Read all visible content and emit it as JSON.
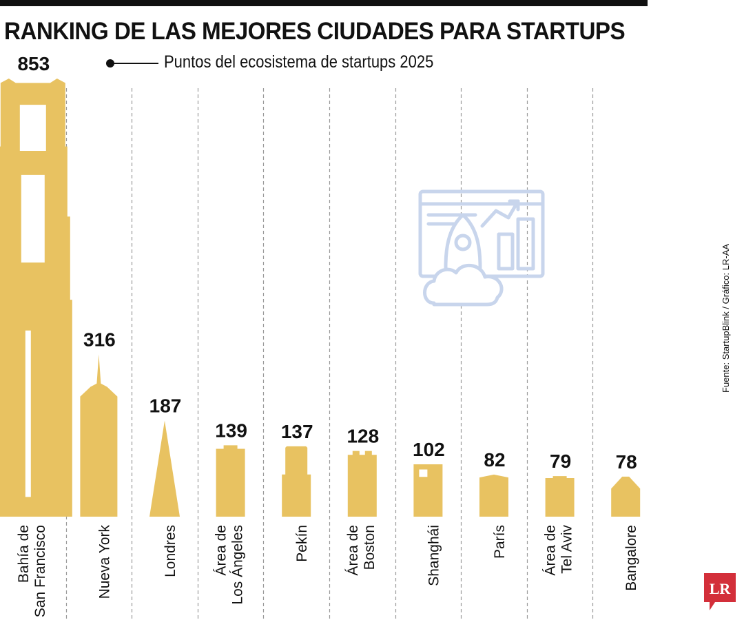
{
  "header": {
    "title": "RANKING DE LAS MEJORES CIUDADES PARA STARTUPS",
    "legend": "Puntos del ecosistema de startups 2025"
  },
  "footer": {
    "source": "Fuente: StartupBlink / Gráfico: LR-AA",
    "logo_text": "LR"
  },
  "colors": {
    "bar": "#E8C261",
    "icon_stroke": "#C8D5EC",
    "divider": "#9A9A9A",
    "logo": "#D32F3A"
  },
  "icons": [
    "rocket-icon",
    "growth-chart-icon",
    "cloud-icon"
  ],
  "chart_data": {
    "type": "bar",
    "title": "RANKING DE LAS MEJORES CIUDADES PARA STARTUPS",
    "ylabel": "Puntos del ecosistema de startups 2025",
    "categories": [
      [
        "Bahía de",
        "San Francisco"
      ],
      [
        "Nueva York"
      ],
      [
        "Londres"
      ],
      [
        "Área de",
        "Los Ángeles"
      ],
      [
        "Pekín"
      ],
      [
        "Área de",
        "Boston"
      ],
      [
        "Shanghái"
      ],
      [
        "París"
      ],
      [
        "Área de",
        "Tel Aviv"
      ],
      [
        "Bangalore"
      ]
    ],
    "values": [
      853,
      316,
      187,
      139,
      137,
      128,
      102,
      82,
      79,
      78
    ],
    "bar_shapes": [
      "golden-gate-tower",
      "empire-state-building",
      "spire",
      "flat-top-building",
      "stepped-building",
      "twin-cap-building",
      "windowed-building",
      "gabled-building",
      "flat-top-building",
      "house"
    ]
  }
}
